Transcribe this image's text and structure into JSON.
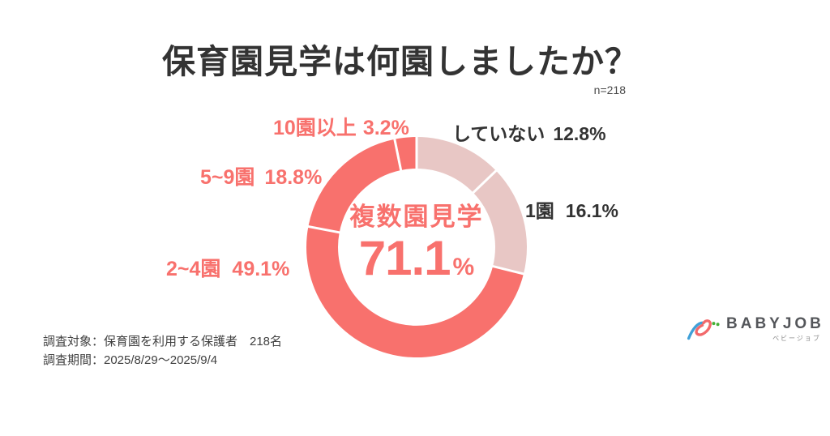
{
  "title": "保育園見学は何園しましたか？",
  "sample_size_label": "n=218",
  "chart_data": {
    "type": "donut",
    "title": "保育園見学は何園しましたか？",
    "n": 218,
    "unit": "%",
    "direction": "clockwise",
    "start_angle_deg": 0,
    "donut_hole_ratio": 0.72,
    "center": {
      "label": "複数園見学",
      "value": "71.1",
      "unit": "%"
    },
    "segments": [
      {
        "label": "していない",
        "value": 12.8,
        "display": "12.8%",
        "color": "#E8C7C5",
        "label_color": "#333333"
      },
      {
        "label": "1園",
        "value": 16.1,
        "display": "16.1%",
        "color": "#E8C7C5",
        "label_color": "#333333"
      },
      {
        "label": "2~4園",
        "value": 49.1,
        "display": "49.1%",
        "color": "#F8716D",
        "label_color": "#F8716D"
      },
      {
        "label": "5~9園",
        "value": 18.8,
        "display": "18.8%",
        "color": "#F8716D",
        "label_color": "#F8716D"
      },
      {
        "label": "10園以上",
        "value": 3.2,
        "display": "3.2%",
        "color": "#F8716D",
        "label_color": "#F8716D"
      }
    ]
  },
  "footer": {
    "line1": "調査対象：保育園を利用する保護者　218名",
    "line2": "調査期間：2025/8/29〜2025/9/4"
  },
  "logo": {
    "brand": "BABYJOB",
    "brand_kana": "ベビージョブ",
    "icon": "babyjob-swoosh-icon"
  },
  "colors": {
    "accent_red": "#F8716D",
    "muted_pink": "#E8C7C5",
    "text_dark": "#333333",
    "text_gray": "#414141",
    "brand_gray": "#54565A",
    "logo_blue": "#3FA0D8",
    "logo_red": "#F2696B",
    "logo_green": "#44B035"
  }
}
